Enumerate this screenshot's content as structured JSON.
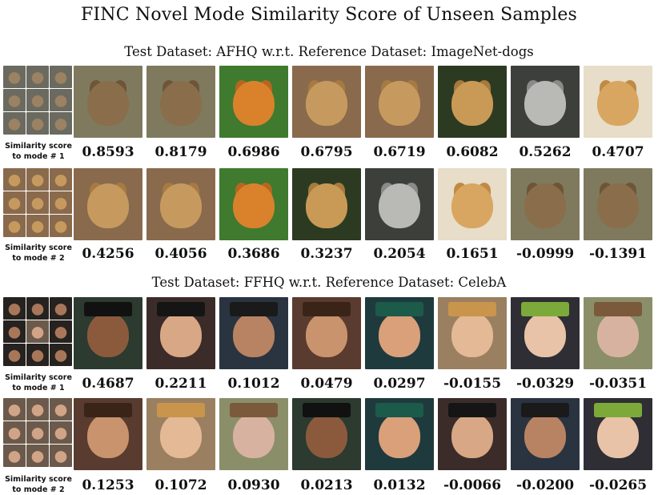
{
  "title": "FINC Novel Mode Similarity Score of Unseen Samples",
  "sections": [
    {
      "subtitle": "Test Dataset: AFHQ w.r.t. Reference Dataset: ImageNet-dogs",
      "rows": [
        {
          "label_line1": "Similarity score",
          "label_line2": "to mode # 1",
          "mode_grid": [
            "cat",
            "cat",
            "cat",
            "cat",
            "cat",
            "cat",
            "cat",
            "cat",
            "cat"
          ],
          "images": [
            "tabby-cat",
            "tabby-cat",
            "tiger",
            "lion",
            "lion",
            "cheetah",
            "wolf",
            "golden-dog"
          ],
          "scores": [
            "0.8593",
            "0.8179",
            "0.6986",
            "0.6795",
            "0.6719",
            "0.6082",
            "0.5262",
            "0.4707"
          ]
        },
        {
          "label_line1": "Similarity score",
          "label_line2": "to mode # 2",
          "mode_grid": [
            "lion",
            "lion",
            "lion",
            "lion",
            "lion",
            "lion",
            "lion",
            "lion",
            "lion"
          ],
          "images": [
            "lion",
            "lion",
            "tiger",
            "cheetah",
            "wolf",
            "golden-dog",
            "tabby-cat",
            "tabby-cat"
          ],
          "scores": [
            "0.4256",
            "0.4056",
            "0.3686",
            "0.3237",
            "0.2054",
            "0.1651",
            "-0.0999",
            "-0.1391"
          ]
        }
      ]
    },
    {
      "subtitle": "Test Dataset: FFHQ w.r.t. Reference Dataset: CelebA",
      "rows": [
        {
          "label_line1": "Similarity score",
          "label_line2": "to mode # 1",
          "mode_grid": [
            "grad",
            "grad",
            "grad",
            "grad",
            "face",
            "grad",
            "grad",
            "grad",
            "grad"
          ],
          "images": [
            "graduate-woman",
            "graduate-man",
            "graduate-man-2",
            "woman",
            "baseball-cap-man",
            "woman-blonde",
            "baby-hat",
            "face-paint-girl"
          ],
          "scores": [
            "0.4687",
            "0.2211",
            "0.1012",
            "0.0479",
            "0.0297",
            "-0.0155",
            "-0.0329",
            "-0.0351"
          ]
        },
        {
          "label_line1": "Similarity score",
          "label_line2": "to mode # 2",
          "mode_grid": [
            "face",
            "face",
            "face",
            "face",
            "face",
            "face",
            "face",
            "face",
            "face"
          ],
          "images": [
            "woman",
            "woman-blonde",
            "face-paint-girl",
            "graduate-woman",
            "baseball-cap-man",
            "graduate-man",
            "graduate-man-2",
            "baby-hat"
          ],
          "scores": [
            "0.1253",
            "0.1072",
            "0.0930",
            "0.0213",
            "0.0132",
            "-0.0066",
            "-0.0200",
            "-0.0265"
          ]
        }
      ]
    }
  ],
  "colors": {
    "tabby-cat": {
      "bg": "#7f7a5e",
      "face": "#8a6d4a",
      "ear": "#6e5537"
    },
    "tiger": {
      "bg": "#3f7a2e",
      "face": "#d9822b",
      "ear": "#b5661f"
    },
    "lion": {
      "bg": "#8a6a4d",
      "face": "#c69a5e",
      "ear": "#a67a42"
    },
    "cheetah": {
      "bg": "#2d3a22",
      "face": "#c99a55",
      "ear": "#a57a3d"
    },
    "wolf": {
      "bg": "#3d3f3b",
      "face": "#b9b9b6",
      "ear": "#8a8a88"
    },
    "golden-dog": {
      "bg": "#e7ddc8",
      "face": "#d8a660",
      "ear": "#c08a45"
    },
    "cat": {
      "bg": "#6b6a60",
      "face": "#9a8263",
      "ear": "#7d654a"
    },
    "graduate-woman": {
      "bg": "#2c3a2f",
      "face": "#8b5a3c",
      "hat": "#111111"
    },
    "graduate-man": {
      "bg": "#3b2c2a",
      "face": "#d8a785",
      "hat": "#151515"
    },
    "graduate-man-2": {
      "bg": "#2a3340",
      "face": "#b88362",
      "hat": "#1a1a1a"
    },
    "woman": {
      "bg": "#5a3b2f",
      "face": "#c9936e",
      "hat": "#3a2418"
    },
    "baseball-cap-man": {
      "bg": "#1f3a3d",
      "face": "#d9a07a",
      "hat": "#1c5a4a"
    },
    "woman-blonde": {
      "bg": "#9a8060",
      "face": "#e4b996",
      "hat": "#c9954d"
    },
    "baby-hat": {
      "bg": "#2e2e34",
      "face": "#e8c3a8",
      "hat": "#7caa3a"
    },
    "face-paint-girl": {
      "bg": "#8a8f6a",
      "face": "#d8b2a0",
      "hat": "#7a5a3a"
    },
    "grad": {
      "bg": "#26221f",
      "face": "#a8775a",
      "hat": "#0f0f0f"
    },
    "face": {
      "bg": "#6b5a4c",
      "face": "#d2a487",
      "hat": "#4a3326"
    }
  }
}
